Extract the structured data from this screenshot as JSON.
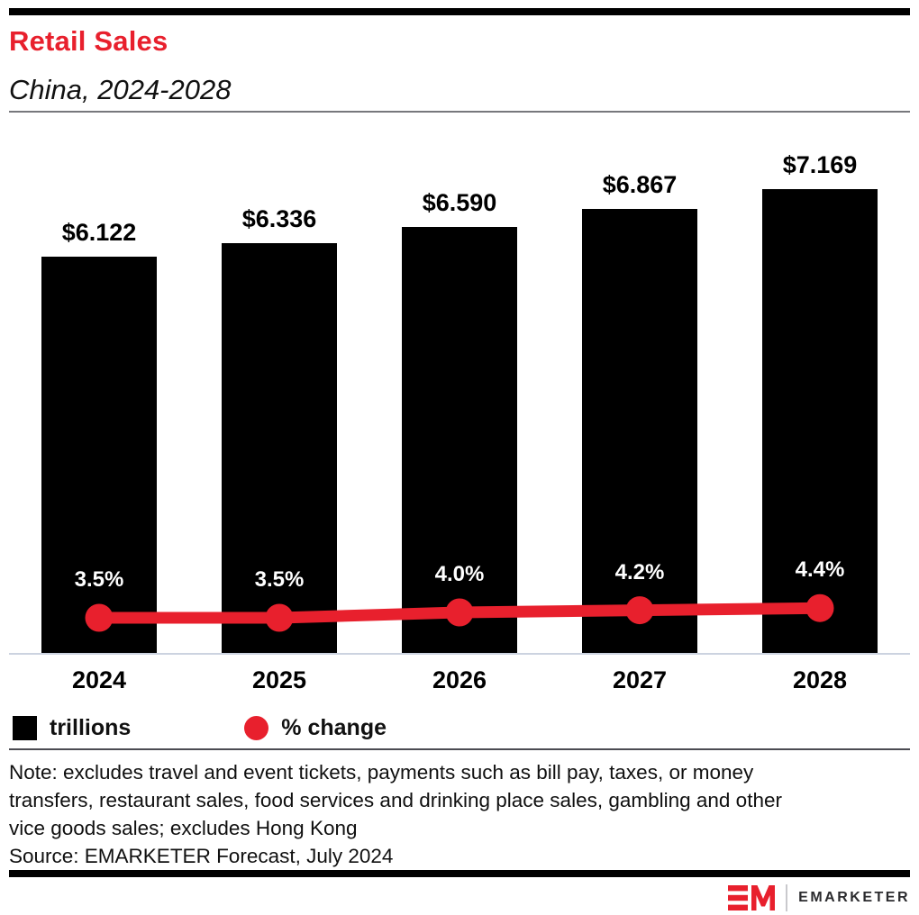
{
  "header": {
    "title": "Retail Sales",
    "subtitle": "China, 2024-2028"
  },
  "chart_data": {
    "type": "bar",
    "categories": [
      "2024",
      "2025",
      "2026",
      "2027",
      "2028"
    ],
    "series": [
      {
        "name": "trillions",
        "type": "bar",
        "color": "#000000",
        "values": [
          6.122,
          6.336,
          6.59,
          6.867,
          7.169
        ],
        "labels": [
          "$6.122",
          "$6.336",
          "$6.590",
          "$6.867",
          "$7.169"
        ]
      },
      {
        "name": "% change",
        "type": "line",
        "color": "#e8202d",
        "values": [
          3.5,
          3.5,
          4.0,
          4.2,
          4.4
        ],
        "labels": [
          "3.5%",
          "3.5%",
          "4.0%",
          "4.2%",
          "4.4%"
        ]
      }
    ],
    "title": "Retail Sales",
    "subtitle": "China, 2024-2028",
    "xlabel": "",
    "ylabel": "",
    "value_unit": "$ trillions",
    "ylim": [
      0,
      7.169
    ],
    "grid": false,
    "legend_position": "bottom"
  },
  "legend": {
    "items": [
      {
        "label": "trillions",
        "swatch": "square",
        "color": "#000000"
      },
      {
        "label": "% change",
        "swatch": "circle",
        "color": "#e8202d"
      }
    ]
  },
  "notes": {
    "note": "Note: excludes travel and event tickets, payments such as bill pay, taxes, or money\ntransfers, restaurant sales, food services and drinking place sales, gambling and other\nvice goods sales; excludes Hong Kong",
    "source": "Source: EMARKETER Forecast, July 2024"
  },
  "footer": {
    "brand": "EMARKETER"
  },
  "colors": {
    "accent_red": "#e8202d",
    "bar_black": "#000000",
    "baseline_gray": "#ccd3e0",
    "header_divider": "#77787c",
    "legend_divider": "#4c4c52"
  }
}
